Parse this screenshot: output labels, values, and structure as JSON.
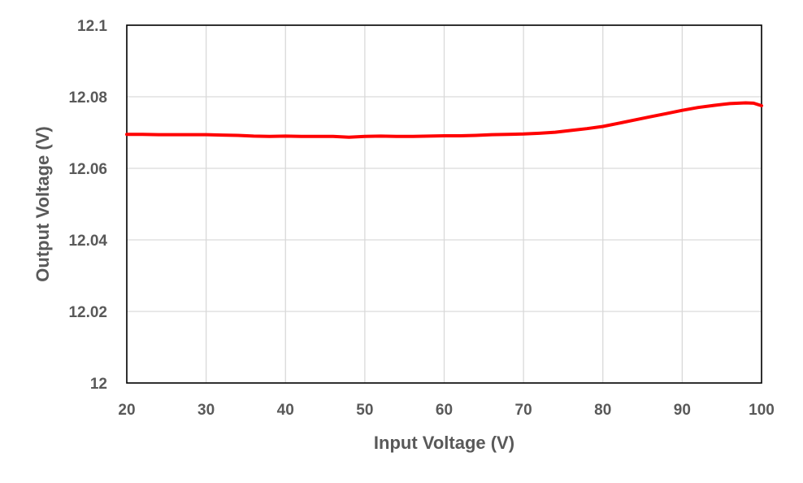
{
  "chart_data": {
    "type": "line",
    "title": "",
    "xlabel": "Input Voltage (V)",
    "ylabel": "Output Voltage (V)",
    "xlim": [
      20,
      100
    ],
    "ylim": [
      12,
      12.1
    ],
    "x_ticks": [
      20,
      30,
      40,
      50,
      60,
      70,
      80,
      90,
      100
    ],
    "y_ticks": [
      12,
      12.02,
      12.04,
      12.06,
      12.08,
      12.1
    ],
    "x_tick_labels": [
      "20",
      "30",
      "40",
      "50",
      "60",
      "70",
      "80",
      "90",
      "100"
    ],
    "y_tick_labels": [
      "12",
      "12.02",
      "12.04",
      "12.06",
      "12.08",
      "12.1"
    ],
    "grid": true,
    "legend": "none",
    "series": [
      {
        "color": "#ff0000",
        "x": [
          20,
          22,
          24,
          26,
          28,
          30,
          32,
          34,
          36,
          38,
          40,
          42,
          44,
          46,
          48,
          50,
          52,
          54,
          56,
          58,
          60,
          62,
          64,
          66,
          68,
          70,
          72,
          74,
          76,
          78,
          80,
          82,
          84,
          86,
          88,
          90,
          92,
          94,
          96,
          98,
          99,
          100
        ],
        "y": [
          12.0695,
          12.0695,
          12.0694,
          12.0694,
          12.0694,
          12.0694,
          12.0693,
          12.0692,
          12.069,
          12.0689,
          12.069,
          12.0689,
          12.0689,
          12.0689,
          12.0687,
          12.0689,
          12.069,
          12.0689,
          12.0689,
          12.069,
          12.0691,
          12.0691,
          12.0692,
          12.0694,
          12.0695,
          12.0696,
          12.0698,
          12.0701,
          12.0706,
          12.0711,
          12.0717,
          12.0726,
          12.0735,
          12.0744,
          12.0753,
          12.0762,
          12.077,
          12.0776,
          12.0781,
          12.0783,
          12.0782,
          12.0775
        ]
      }
    ]
  }
}
